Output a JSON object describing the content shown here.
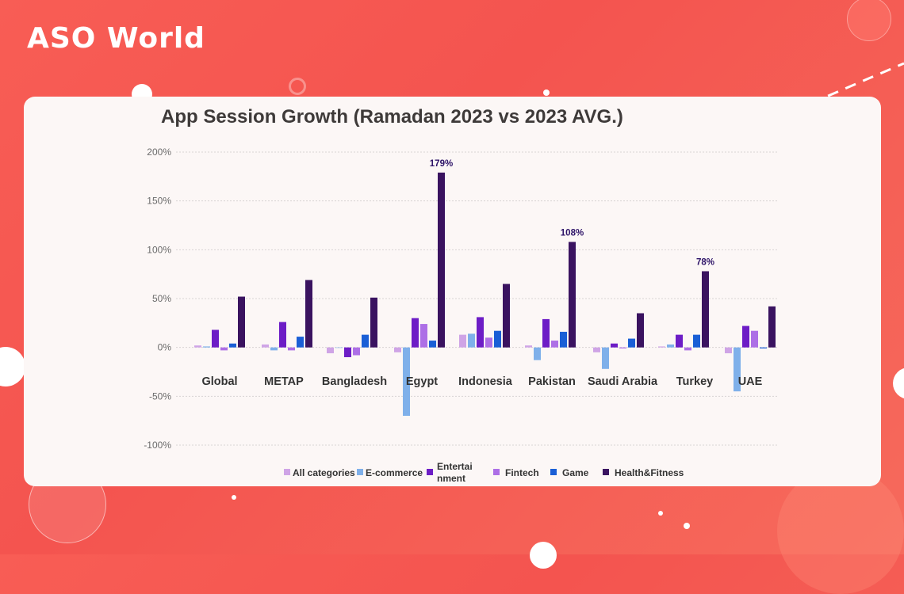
{
  "brand": {
    "logo_text": "ASO World"
  },
  "chart_data": {
    "type": "bar",
    "title": "App Session Growth (Ramadan 2023 vs 2023 AVG.)",
    "categories": [
      "Global",
      "METAP",
      "Bangladesh",
      "Egypt",
      "Indonesia",
      "Pakistan",
      "Saudi Arabia",
      "Turkey",
      "UAE"
    ],
    "ylim": [
      -100,
      200
    ],
    "yticks": [
      -100,
      -50,
      0,
      50,
      100,
      150,
      200
    ],
    "ytick_labels": [
      "-100%",
      "-50%",
      "0%",
      "50%",
      "100%",
      "150%",
      "200%"
    ],
    "grid": true,
    "legend_position": "bottom",
    "series": [
      {
        "name": "All categories",
        "color": "#cfa4e6",
        "values": [
          2,
          3,
          -6,
          -5,
          13,
          2,
          -5,
          1,
          -6
        ]
      },
      {
        "name": "E-commerce",
        "color": "#7fb0ea",
        "values": [
          1,
          -3,
          0,
          -70,
          14,
          -13,
          -22,
          3,
          -45
        ]
      },
      {
        "name": "Entertainment",
        "color": "#6d1dc6",
        "values": [
          18,
          26,
          -10,
          30,
          31,
          29,
          4,
          13,
          22
        ]
      },
      {
        "name": "Fintech",
        "color": "#ad6fe6",
        "values": [
          -3,
          -3,
          -8,
          24,
          10,
          7,
          -1,
          -3,
          17
        ]
      },
      {
        "name": "Game",
        "color": "#1a5fd6",
        "values": [
          4,
          11,
          13,
          7,
          17,
          16,
          9,
          13,
          -1
        ]
      },
      {
        "name": "Health&Fitness",
        "color": "#3a1360",
        "values": [
          52,
          69,
          51,
          179,
          65,
          108,
          35,
          78,
          42
        ]
      }
    ],
    "data_labels": [
      {
        "category": "Egypt",
        "series": "Health&Fitness",
        "text": "179%",
        "value": 179
      },
      {
        "category": "Pakistan",
        "series": "Health&Fitness",
        "text": "108%",
        "value": 108
      },
      {
        "category": "Turkey",
        "series": "Health&Fitness",
        "text": "78%",
        "value": 78
      }
    ],
    "legend_labels": [
      "All categories",
      "E-commerce",
      "Entertai nment",
      "Fintech",
      "Game",
      "Health&Fitness"
    ]
  }
}
